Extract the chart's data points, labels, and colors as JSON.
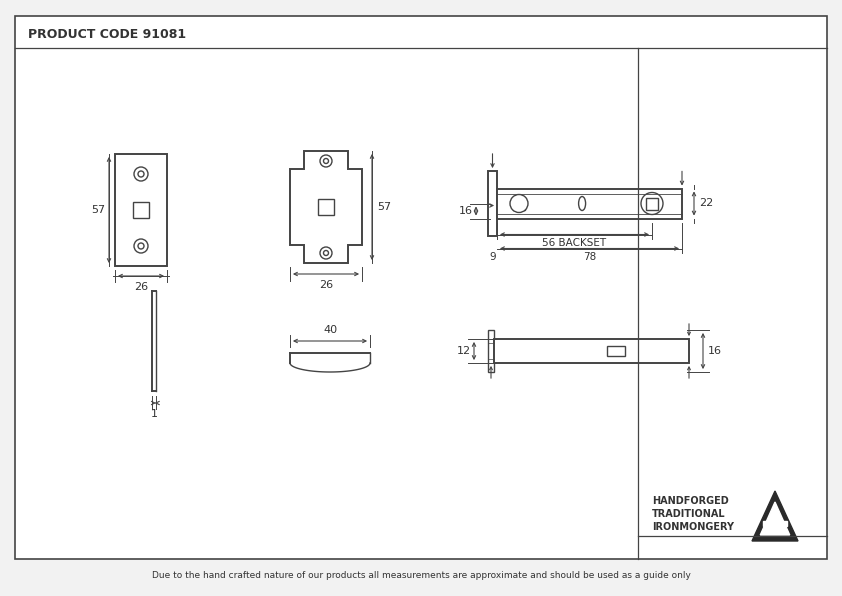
{
  "title": "PRODUCT CODE 91081",
  "footer": "Due to the hand crafted nature of our products all measurements are approximate and should be used as a guide only",
  "brand_line1": "HANDFORGED",
  "brand_line2": "TRADITIONAL",
  "brand_line3": "IRONMONGERY",
  "bg_color": "#f2f2f2",
  "line_color": "#444444",
  "text_color": "#333333"
}
